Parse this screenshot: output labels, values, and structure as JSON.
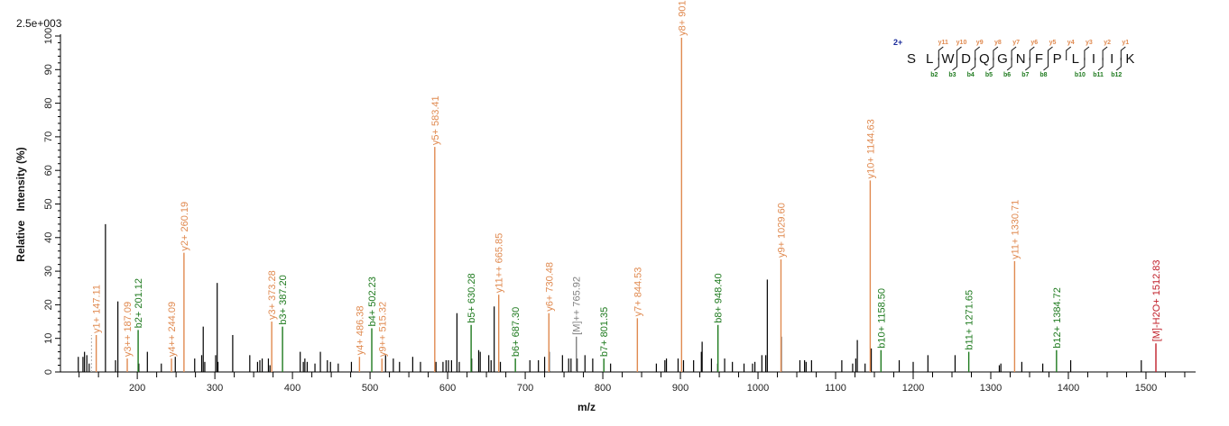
{
  "chart_data": {
    "type": "bar",
    "subtype": "mass-spectrum-stick-plot",
    "title": "",
    "scale_label": "2.5e+003",
    "xlabel": "m/z",
    "ylabel": "Relative   Intensity (%)",
    "xlim": [
      101,
      1564
    ],
    "ylim": [
      0,
      100
    ],
    "x_ticks": [
      200,
      300,
      400,
      500,
      600,
      700,
      800,
      900,
      1000,
      1100,
      1200,
      1300,
      1400,
      1500
    ],
    "y_ticks": [
      0,
      10,
      20,
      30,
      40,
      50,
      60,
      70,
      80,
      90,
      100
    ],
    "grid": false,
    "legend": null,
    "colors": {
      "y_ion": "#e08a50",
      "b_ion": "#1e7a1e",
      "precursor": "#808080",
      "water_loss": "#c0202a",
      "unassigned": "#000000",
      "axis": "#000000",
      "charge_label": "#1a2a9a"
    },
    "annotated_peaks": [
      {
        "label": "y1+ 147.11",
        "mz": 147.11,
        "intensity": 11,
        "type": "y"
      },
      {
        "label": "y3++ 187.09",
        "mz": 187.09,
        "intensity": 4,
        "type": "y"
      },
      {
        "label": "b2+ 201.12",
        "mz": 201.12,
        "intensity": 12.5,
        "type": "b"
      },
      {
        "label": "y4++ 244.09",
        "mz": 244.09,
        "intensity": 4,
        "type": "y"
      },
      {
        "label": "y2+ 260.19",
        "mz": 260.19,
        "intensity": 35.5,
        "type": "y"
      },
      {
        "label": "y3+ 373.28",
        "mz": 373.28,
        "intensity": 15,
        "type": "y"
      },
      {
        "label": "b3+ 387.20",
        "mz": 387.2,
        "intensity": 13.5,
        "type": "b"
      },
      {
        "label": "y4+ 486.38",
        "mz": 486.38,
        "intensity": 4.5,
        "type": "y"
      },
      {
        "label": "b4+ 502.23",
        "mz": 502.23,
        "intensity": 13,
        "type": "b"
      },
      {
        "label": "y9++ 515.32",
        "mz": 515.32,
        "intensity": 4,
        "type": "y"
      },
      {
        "label": "y5+ 583.41",
        "mz": 583.41,
        "intensity": 67,
        "type": "y"
      },
      {
        "label": "b5+ 630.28",
        "mz": 630.28,
        "intensity": 14,
        "type": "b"
      },
      {
        "label": "y11++ 665.85",
        "mz": 665.85,
        "intensity": 23,
        "type": "y"
      },
      {
        "label": "b6+ 687.30",
        "mz": 687.3,
        "intensity": 4,
        "type": "b"
      },
      {
        "label": "y6+ 730.48",
        "mz": 730.48,
        "intensity": 17.5,
        "type": "y"
      },
      {
        "label": "[M]++ 765.92",
        "mz": 765.92,
        "intensity": 10.5,
        "type": "precursor"
      },
      {
        "label": "b7+ 801.35",
        "mz": 801.35,
        "intensity": 4,
        "type": "b"
      },
      {
        "label": "y7+ 844.53",
        "mz": 844.53,
        "intensity": 16,
        "type": "y"
      },
      {
        "label": "y8+ 901.5",
        "mz": 901.5,
        "intensity": 99.5,
        "type": "y"
      },
      {
        "label": "b8+ 948.40",
        "mz": 948.4,
        "intensity": 14,
        "type": "b"
      },
      {
        "label": "y9+ 1029.60",
        "mz": 1029.6,
        "intensity": 33.5,
        "type": "y"
      },
      {
        "label": "y10+ 1144.63",
        "mz": 1144.63,
        "intensity": 57,
        "type": "y"
      },
      {
        "label": "b10+ 1158.50",
        "mz": 1158.5,
        "intensity": 6.5,
        "type": "b"
      },
      {
        "label": "b11+ 1271.65",
        "mz": 1271.65,
        "intensity": 6,
        "type": "b"
      },
      {
        "label": "y11+ 1330.71",
        "mz": 1330.71,
        "intensity": 33,
        "type": "y"
      },
      {
        "label": "b12+ 1384.72",
        "mz": 1384.72,
        "intensity": 6.5,
        "type": "b"
      },
      {
        "label": "[M]-H2O+ 1512.83",
        "mz": 1512.83,
        "intensity": 8.5,
        "type": "water_loss"
      }
    ],
    "unassigned_peaks": [
      {
        "mz": 124,
        "intensity": 4.5
      },
      {
        "mz": 130,
        "intensity": 4.5
      },
      {
        "mz": 132,
        "intensity": 6
      },
      {
        "mz": 135,
        "intensity": 5
      },
      {
        "mz": 138,
        "intensity": 2.5
      },
      {
        "mz": 159,
        "intensity": 44
      },
      {
        "mz": 172,
        "intensity": 3.5
      },
      {
        "mz": 175,
        "intensity": 21
      },
      {
        "mz": 202,
        "intensity": 2.5
      },
      {
        "mz": 213,
        "intensity": 6
      },
      {
        "mz": 231,
        "intensity": 2.5
      },
      {
        "mz": 249,
        "intensity": 4.5
      },
      {
        "mz": 274,
        "intensity": 4
      },
      {
        "mz": 283,
        "intensity": 5
      },
      {
        "mz": 285,
        "intensity": 13.5
      },
      {
        "mz": 287,
        "intensity": 3
      },
      {
        "mz": 301,
        "intensity": 5
      },
      {
        "mz": 303,
        "intensity": 26.5
      },
      {
        "mz": 304,
        "intensity": 3
      },
      {
        "mz": 323,
        "intensity": 11
      },
      {
        "mz": 345,
        "intensity": 5
      },
      {
        "mz": 355,
        "intensity": 3
      },
      {
        "mz": 358,
        "intensity": 3.5
      },
      {
        "mz": 361,
        "intensity": 4
      },
      {
        "mz": 369,
        "intensity": 4
      },
      {
        "mz": 371,
        "intensity": 2
      },
      {
        "mz": 410,
        "intensity": 6
      },
      {
        "mz": 414,
        "intensity": 3
      },
      {
        "mz": 416,
        "intensity": 4
      },
      {
        "mz": 419,
        "intensity": 3
      },
      {
        "mz": 429,
        "intensity": 2.5
      },
      {
        "mz": 436,
        "intensity": 6
      },
      {
        "mz": 445,
        "intensity": 3.5
      },
      {
        "mz": 449,
        "intensity": 3
      },
      {
        "mz": 459,
        "intensity": 2.5
      },
      {
        "mz": 476,
        "intensity": 3
      },
      {
        "mz": 520,
        "intensity": 5
      },
      {
        "mz": 530,
        "intensity": 4
      },
      {
        "mz": 538,
        "intensity": 3
      },
      {
        "mz": 555,
        "intensity": 4.5
      },
      {
        "mz": 565,
        "intensity": 3
      },
      {
        "mz": 585,
        "intensity": 3
      },
      {
        "mz": 594,
        "intensity": 3
      },
      {
        "mz": 598,
        "intensity": 3.5
      },
      {
        "mz": 601,
        "intensity": 3.5
      },
      {
        "mz": 605,
        "intensity": 3.5
      },
      {
        "mz": 612,
        "intensity": 17.5
      },
      {
        "mz": 615,
        "intensity": 3
      },
      {
        "mz": 631,
        "intensity": 4
      },
      {
        "mz": 640,
        "intensity": 6.5
      },
      {
        "mz": 642,
        "intensity": 6
      },
      {
        "mz": 653,
        "intensity": 5
      },
      {
        "mz": 656,
        "intensity": 3.5
      },
      {
        "mz": 660,
        "intensity": 19.5
      },
      {
        "mz": 668,
        "intensity": 3
      },
      {
        "mz": 706,
        "intensity": 3.5
      },
      {
        "mz": 717,
        "intensity": 3.5
      },
      {
        "mz": 725,
        "intensity": 4.5
      },
      {
        "mz": 731,
        "intensity": 6
      },
      {
        "mz": 748,
        "intensity": 5
      },
      {
        "mz": 756,
        "intensity": 4
      },
      {
        "mz": 759,
        "intensity": 4
      },
      {
        "mz": 767,
        "intensity": 4
      },
      {
        "mz": 777,
        "intensity": 5
      },
      {
        "mz": 787,
        "intensity": 4
      },
      {
        "mz": 810,
        "intensity": 2.5
      },
      {
        "mz": 869,
        "intensity": 2.5
      },
      {
        "mz": 880,
        "intensity": 3.5
      },
      {
        "mz": 882,
        "intensity": 4
      },
      {
        "mz": 897,
        "intensity": 4
      },
      {
        "mz": 904,
        "intensity": 3.5
      },
      {
        "mz": 917,
        "intensity": 3.5
      },
      {
        "mz": 927,
        "intensity": 6
      },
      {
        "mz": 928,
        "intensity": 9
      },
      {
        "mz": 940,
        "intensity": 4
      },
      {
        "mz": 948,
        "intensity": 2.5
      },
      {
        "mz": 957,
        "intensity": 4
      },
      {
        "mz": 967,
        "intensity": 3
      },
      {
        "mz": 982,
        "intensity": 2.5
      },
      {
        "mz": 993,
        "intensity": 2.5
      },
      {
        "mz": 996,
        "intensity": 3
      },
      {
        "mz": 1005,
        "intensity": 5
      },
      {
        "mz": 1010,
        "intensity": 5
      },
      {
        "mz": 1012,
        "intensity": 27.5
      },
      {
        "mz": 1030,
        "intensity": 10.5
      },
      {
        "mz": 1054,
        "intensity": 3.5
      },
      {
        "mz": 1060,
        "intensity": 3.5
      },
      {
        "mz": 1062,
        "intensity": 3
      },
      {
        "mz": 1069,
        "intensity": 3.5
      },
      {
        "mz": 1108,
        "intensity": 3.5
      },
      {
        "mz": 1122,
        "intensity": 2.5
      },
      {
        "mz": 1126,
        "intensity": 4
      },
      {
        "mz": 1128,
        "intensity": 9.5
      },
      {
        "mz": 1138,
        "intensity": 2.5
      },
      {
        "mz": 1146,
        "intensity": 7
      },
      {
        "mz": 1182,
        "intensity": 3.5
      },
      {
        "mz": 1200,
        "intensity": 3
      },
      {
        "mz": 1219,
        "intensity": 5
      },
      {
        "mz": 1254,
        "intensity": 5
      },
      {
        "mz": 1311,
        "intensity": 2
      },
      {
        "mz": 1313,
        "intensity": 2.5
      },
      {
        "mz": 1340,
        "intensity": 3
      },
      {
        "mz": 1367,
        "intensity": 2.5
      },
      {
        "mz": 1403,
        "intensity": 3.5
      },
      {
        "mz": 1494,
        "intensity": 3.5
      }
    ],
    "dashed_marker": {
      "mz": 141,
      "intensity": 11,
      "color": "#b0b0b0"
    }
  },
  "sequence_panel": {
    "charge": "2+",
    "residues": [
      "S",
      "L",
      "W",
      "D",
      "Q",
      "G",
      "N",
      "F",
      "P",
      "L",
      "I",
      "I",
      "K"
    ],
    "y_ions": [
      "y11",
      "y10",
      "y9",
      "y8",
      "y7",
      "y6",
      "y5",
      "y4",
      "y3",
      "y2",
      "y1"
    ],
    "b_ions": [
      "b2",
      "b3",
      "b4",
      "b5",
      "b6",
      "b7",
      "b8",
      "",
      "b10",
      "b11",
      "b12"
    ]
  }
}
